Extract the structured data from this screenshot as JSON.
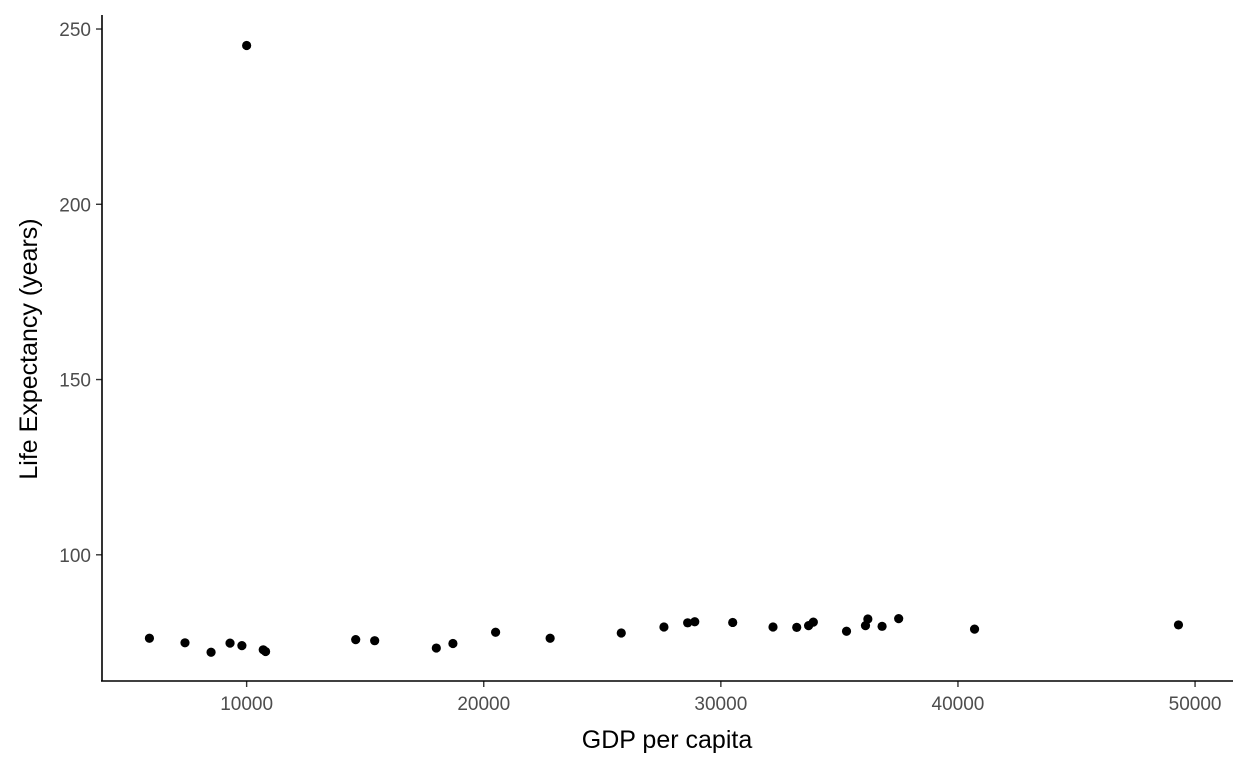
{
  "chart_data": {
    "type": "scatter",
    "title": "",
    "xlabel": "GDP per capita",
    "ylabel": "Life Expectancy (years)",
    "xlim": [
      3900,
      51600
    ],
    "ylim": [
      64,
      254
    ],
    "x_ticks": [
      10000,
      20000,
      30000,
      40000,
      50000
    ],
    "x_tick_labels": [
      "10000",
      "20000",
      "30000",
      "40000",
      "50000"
    ],
    "y_ticks": [
      100,
      150,
      200,
      250
    ],
    "y_tick_labels": [
      "100",
      "150",
      "200",
      "250"
    ],
    "grid": false,
    "legend": "none",
    "point_color": "#000000",
    "series": [
      {
        "points": [
          [
            5900,
            76.2
          ],
          [
            7400,
            74.9
          ],
          [
            8500,
            72.2
          ],
          [
            9300,
            74.8
          ],
          [
            9800,
            74.1
          ],
          [
            10000,
            245.3
          ],
          [
            10700,
            72.9
          ],
          [
            10800,
            72.4
          ],
          [
            14600,
            75.8
          ],
          [
            15400,
            75.5
          ],
          [
            18000,
            73.4
          ],
          [
            18700,
            74.7
          ],
          [
            20500,
            77.9
          ],
          [
            22800,
            76.2
          ],
          [
            25800,
            77.7
          ],
          [
            27600,
            79.4
          ],
          [
            28600,
            80.6
          ],
          [
            28900,
            80.9
          ],
          [
            30500,
            80.7
          ],
          [
            32200,
            79.4
          ],
          [
            33200,
            79.3
          ],
          [
            33700,
            79.8
          ],
          [
            33900,
            80.8
          ],
          [
            35300,
            78.2
          ],
          [
            36100,
            79.8
          ],
          [
            36200,
            81.7
          ],
          [
            36800,
            79.6
          ],
          [
            37500,
            81.8
          ],
          [
            40700,
            78.8
          ],
          [
            49300,
            80.0
          ]
        ]
      }
    ]
  }
}
